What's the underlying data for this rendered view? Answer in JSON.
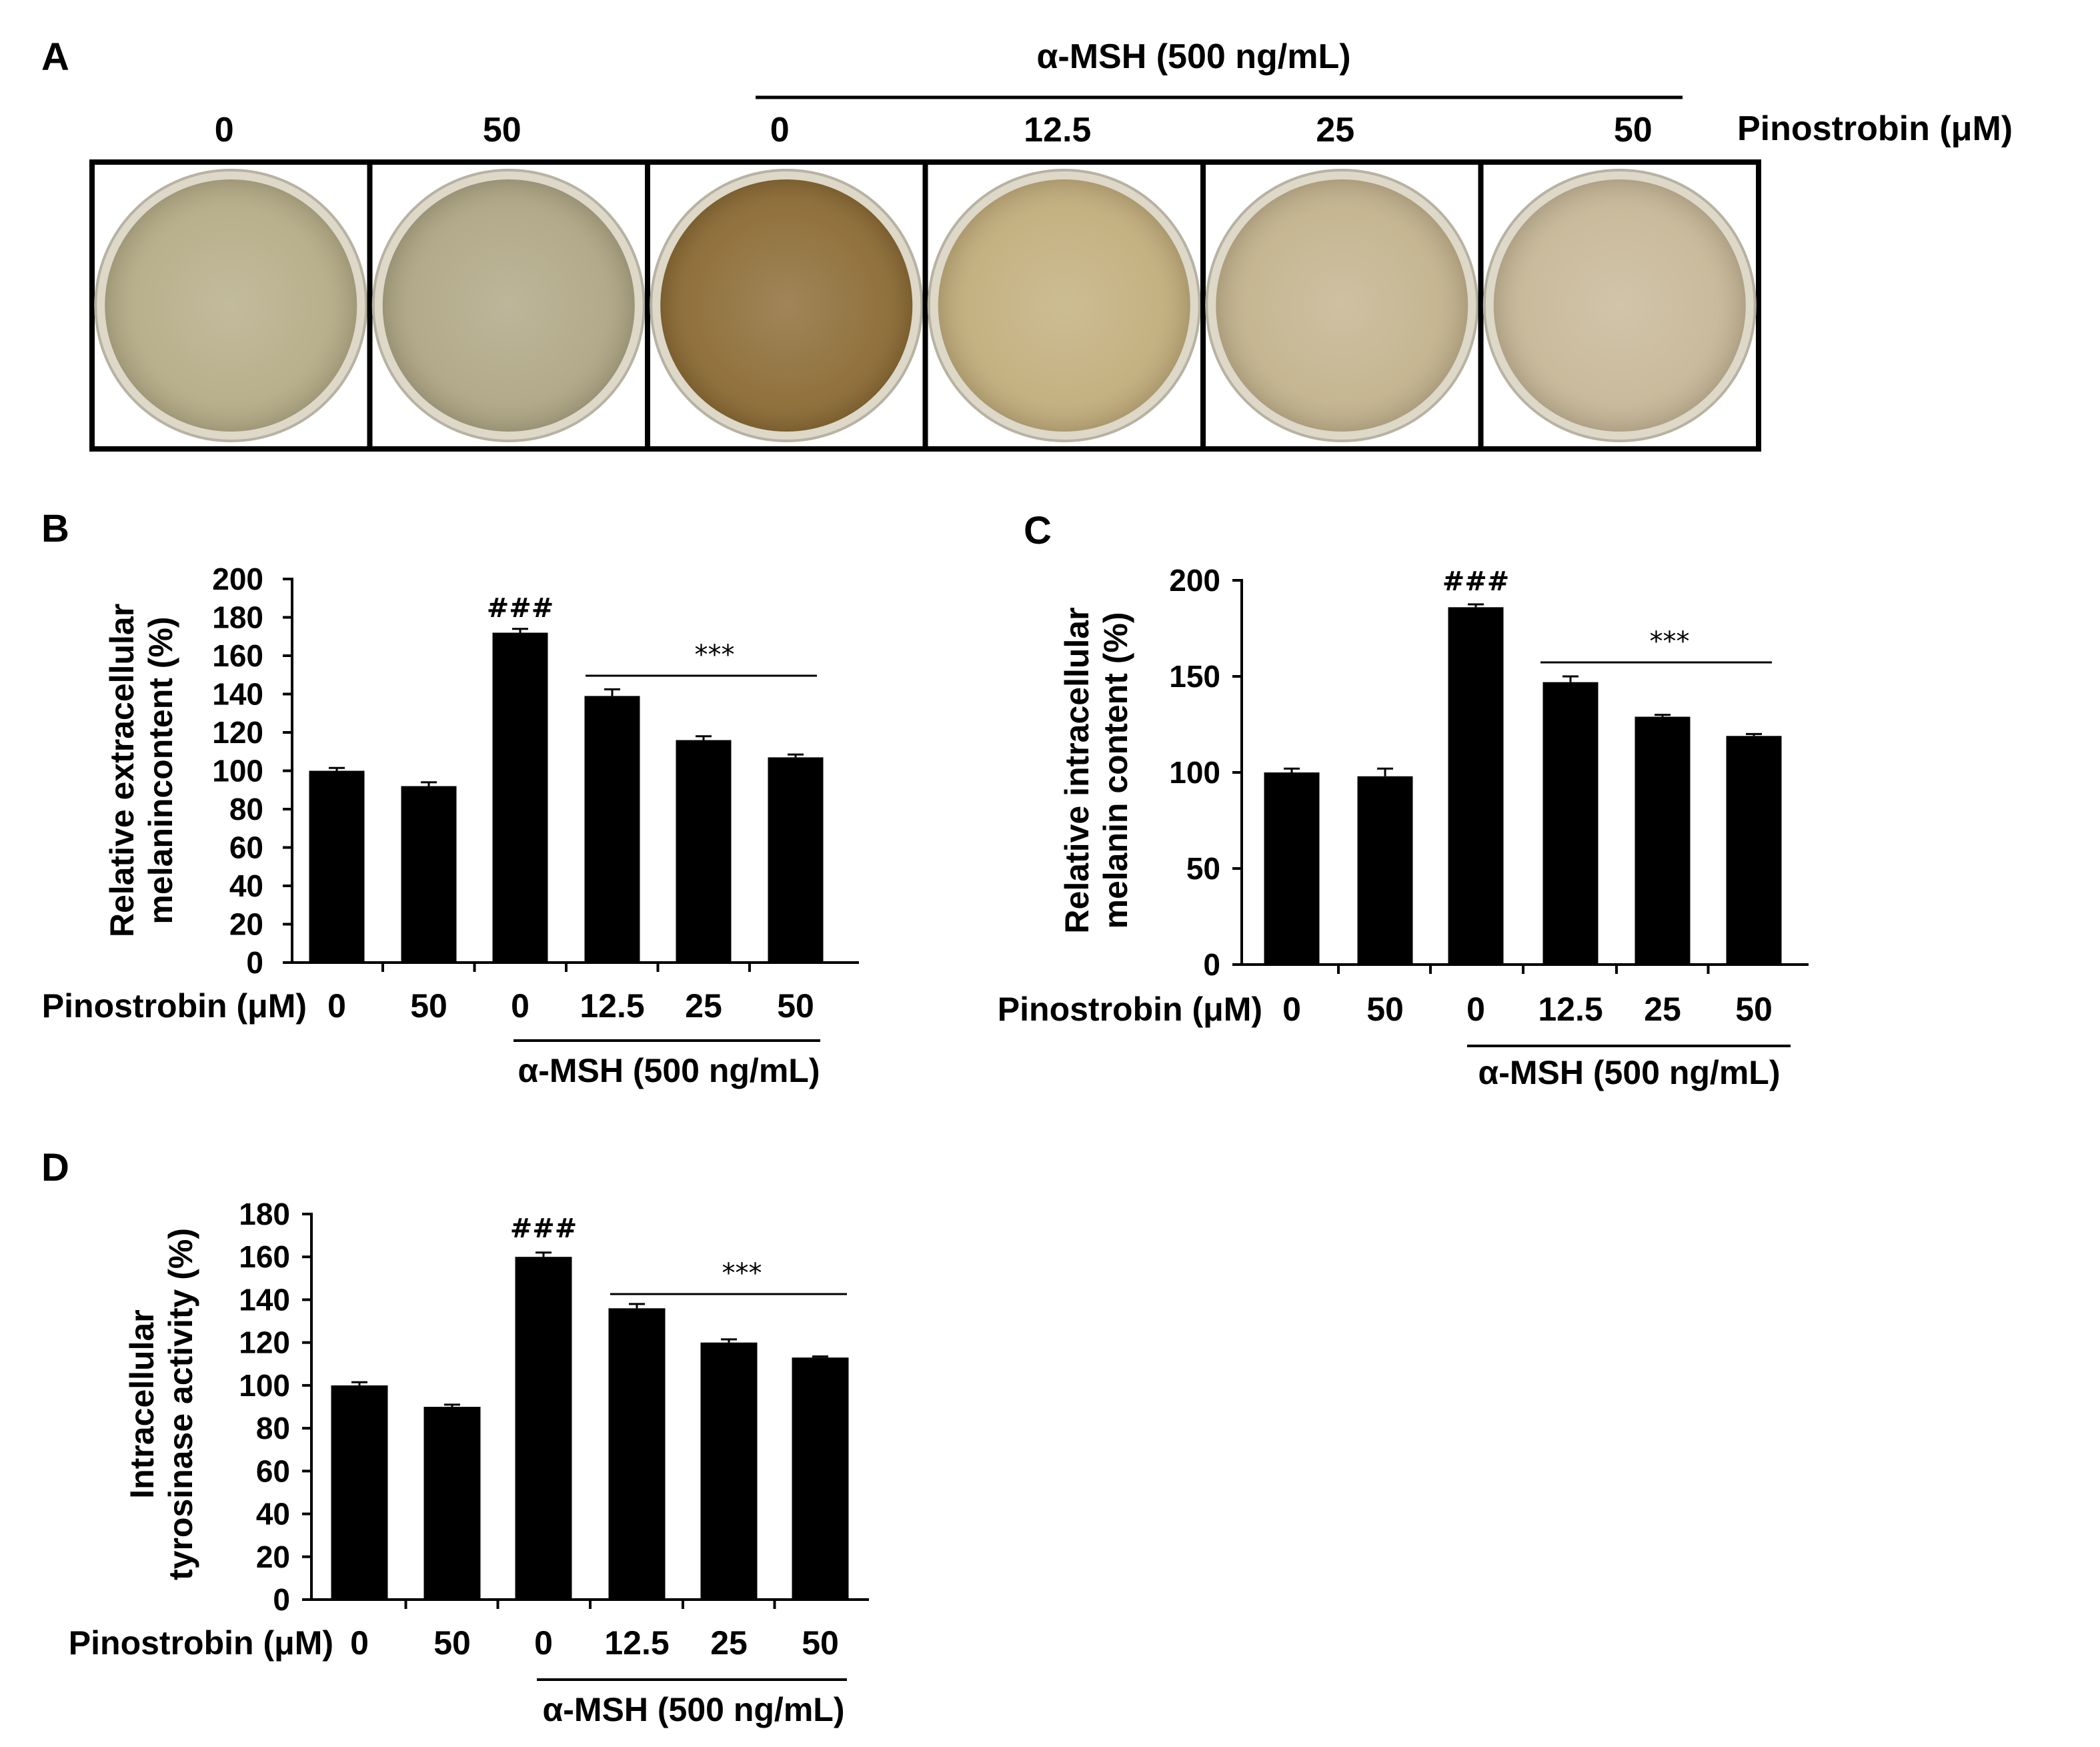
{
  "panel_a": {
    "letter": "A",
    "msh_label": "α-MSH (500 ng/mL)",
    "pinostrobin_label": "Pinostrobin (μM)",
    "doses": [
      "0",
      "50",
      "0",
      "12.5",
      "25",
      "50"
    ],
    "well_tints": [
      "#b5ac86",
      "#afa684",
      "#8c6b35",
      "#c2ae7c",
      "#c3b38d",
      "#c7b797"
    ]
  },
  "chart_data": [
    {
      "panel": "B",
      "type": "bar",
      "categories": [
        "0",
        "50",
        "0",
        "12.5",
        "25",
        "50"
      ],
      "values": [
        100,
        92,
        172,
        139,
        116,
        107
      ],
      "errors": [
        1.5,
        2.0,
        2.0,
        3.5,
        2.0,
        1.5
      ],
      "ylabel_lines": [
        "Relative extracellular",
        "melanincontent (%)"
      ],
      "ylim": [
        0,
        200
      ],
      "yticks": [
        "0",
        "20",
        "40",
        "60",
        "80",
        "100",
        "120",
        "140",
        "160",
        "180",
        "200"
      ],
      "row_label": "Pinostrobin (μM)",
      "group_label": "α-MSH (500 ng/mL)",
      "hash_label": "###",
      "stars_label": "***",
      "color": "#000000"
    },
    {
      "panel": "C",
      "type": "bar",
      "categories": [
        "0",
        "50",
        "0",
        "12.5",
        "25",
        "50"
      ],
      "values": [
        100,
        98,
        186,
        147,
        129,
        119
      ],
      "errors": [
        2.0,
        4.0,
        1.5,
        3.0,
        1.0,
        1.0
      ],
      "ylabel_lines": [
        "Relative intracellular",
        "melanin content (%)"
      ],
      "ylim": [
        0,
        200
      ],
      "yticks": [
        "0",
        "50",
        "100",
        "150",
        "200"
      ],
      "row_label": "Pinostrobin (μM)",
      "group_label": "α-MSH (500 ng/mL)",
      "hash_label": "###",
      "stars_label": "***",
      "color": "#000000"
    },
    {
      "panel": "D",
      "type": "bar",
      "categories": [
        "0",
        "50",
        "0",
        "12.5",
        "25",
        "50"
      ],
      "values": [
        100,
        90,
        160,
        136,
        120,
        113
      ],
      "errors": [
        1.5,
        1.0,
        2.0,
        2.0,
        1.5,
        0.5
      ],
      "ylabel_lines": [
        "Intracellular",
        "tyrosinase activity (%)"
      ],
      "ylim": [
        0,
        180
      ],
      "yticks": [
        "0",
        "20",
        "40",
        "60",
        "80",
        "100",
        "120",
        "140",
        "160",
        "180"
      ],
      "row_label": "Pinostrobin (μM)",
      "group_label": "α-MSH (500 ng/mL)",
      "hash_label": "###",
      "stars_label": "***",
      "color": "#000000"
    }
  ]
}
